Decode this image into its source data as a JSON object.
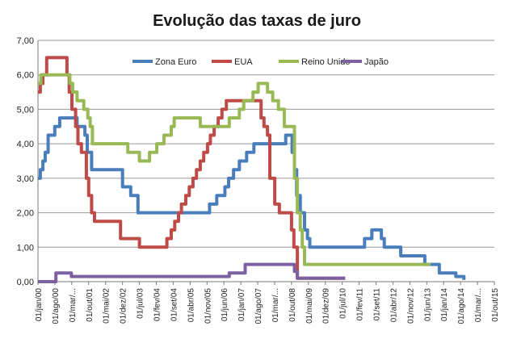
{
  "chart_data": {
    "type": "line",
    "title": "Evolução das taxas de juro",
    "xlabel": "",
    "ylabel": "",
    "ylim": [
      0,
      7
    ],
    "y_ticks": [
      "0,00",
      "1,00",
      "2,00",
      "3,00",
      "4,00",
      "5,00",
      "6,00",
      "7,00"
    ],
    "x_ticks": [
      "01/jan/00",
      "01/ago/00",
      "01/mar/...",
      "01/out/01",
      "01/mai/02",
      "01/dez/02",
      "01/jul/03",
      "01/fev/04",
      "01/set/04",
      "01/abr/05",
      "01/nov/05",
      "01/jun/06",
      "01/jan/07",
      "01/ago/07",
      "01/mar/...",
      "01/out/08",
      "01/mai/09",
      "01/dez/09",
      "01/jul/10",
      "01/fev/11",
      "01/set/11",
      "01/abr/12",
      "01/nov/12",
      "01/jun/13",
      "01/jan/14",
      "01/ago/14",
      "01/mar/...",
      "01/out/15"
    ],
    "grid": true,
    "legend_position": "top",
    "series": [
      {
        "name": "Zona Euro",
        "color": "#4a7ebb",
        "points": [
          [
            2000.0,
            3.0
          ],
          [
            2000.08,
            3.25
          ],
          [
            2000.17,
            3.5
          ],
          [
            2000.25,
            3.75
          ],
          [
            2000.35,
            4.25
          ],
          [
            2000.58,
            4.5
          ],
          [
            2000.75,
            4.75
          ],
          [
            2001.35,
            4.5
          ],
          [
            2001.62,
            4.25
          ],
          [
            2001.7,
            3.75
          ],
          [
            2001.85,
            3.25
          ],
          [
            2002.92,
            2.75
          ],
          [
            2003.2,
            2.5
          ],
          [
            2003.45,
            2.0
          ],
          [
            2005.92,
            2.25
          ],
          [
            2006.17,
            2.5
          ],
          [
            2006.45,
            2.75
          ],
          [
            2006.58,
            3.0
          ],
          [
            2006.75,
            3.25
          ],
          [
            2006.95,
            3.5
          ],
          [
            2007.2,
            3.75
          ],
          [
            2007.45,
            4.0
          ],
          [
            2008.55,
            4.25
          ],
          [
            2008.77,
            3.75
          ],
          [
            2008.85,
            3.25
          ],
          [
            2008.93,
            2.5
          ],
          [
            2009.05,
            2.0
          ],
          [
            2009.2,
            1.5
          ],
          [
            2009.3,
            1.25
          ],
          [
            2009.38,
            1.0
          ],
          [
            2011.27,
            1.25
          ],
          [
            2011.52,
            1.5
          ],
          [
            2011.85,
            1.25
          ],
          [
            2011.95,
            1.0
          ],
          [
            2012.52,
            0.75
          ],
          [
            2013.35,
            0.5
          ],
          [
            2013.85,
            0.25
          ],
          [
            2014.42,
            0.15
          ],
          [
            2014.7,
            0.05
          ]
        ]
      },
      {
        "name": "EUA",
        "color": "#be4b48",
        "points": [
          [
            2000.0,
            5.5
          ],
          [
            2000.08,
            5.75
          ],
          [
            2000.17,
            6.0
          ],
          [
            2000.3,
            6.5
          ],
          [
            2001.0,
            6.0
          ],
          [
            2001.08,
            5.5
          ],
          [
            2001.17,
            5.0
          ],
          [
            2001.3,
            4.5
          ],
          [
            2001.38,
            4.0
          ],
          [
            2001.5,
            3.75
          ],
          [
            2001.67,
            3.0
          ],
          [
            2001.75,
            2.5
          ],
          [
            2001.85,
            2.0
          ],
          [
            2001.95,
            1.75
          ],
          [
            2002.85,
            1.25
          ],
          [
            2003.5,
            1.0
          ],
          [
            2004.45,
            1.25
          ],
          [
            2004.6,
            1.5
          ],
          [
            2004.72,
            1.75
          ],
          [
            2004.85,
            2.0
          ],
          [
            2004.95,
            2.25
          ],
          [
            2005.1,
            2.5
          ],
          [
            2005.22,
            2.75
          ],
          [
            2005.35,
            3.0
          ],
          [
            2005.47,
            3.25
          ],
          [
            2005.6,
            3.5
          ],
          [
            2005.72,
            3.75
          ],
          [
            2005.85,
            4.0
          ],
          [
            2005.95,
            4.25
          ],
          [
            2006.08,
            4.5
          ],
          [
            2006.22,
            4.75
          ],
          [
            2006.35,
            5.0
          ],
          [
            2006.5,
            5.25
          ],
          [
            2007.7,
            4.75
          ],
          [
            2007.8,
            4.5
          ],
          [
            2007.92,
            4.25
          ],
          [
            2008.0,
            3.0
          ],
          [
            2008.17,
            2.25
          ],
          [
            2008.33,
            2.0
          ],
          [
            2008.75,
            1.5
          ],
          [
            2008.83,
            1.0
          ],
          [
            2008.95,
            0.1
          ],
          [
            2010.6,
            0.1
          ]
        ]
      },
      {
        "name": "Reino Unido",
        "color": "#98b954",
        "points": [
          [
            2000.0,
            5.75
          ],
          [
            2000.1,
            6.0
          ],
          [
            2001.1,
            5.75
          ],
          [
            2001.2,
            5.5
          ],
          [
            2001.35,
            5.25
          ],
          [
            2001.58,
            5.0
          ],
          [
            2001.72,
            4.75
          ],
          [
            2001.8,
            4.5
          ],
          [
            2001.88,
            4.0
          ],
          [
            2003.1,
            3.75
          ],
          [
            2003.5,
            3.5
          ],
          [
            2003.85,
            3.75
          ],
          [
            2004.1,
            4.0
          ],
          [
            2004.35,
            4.25
          ],
          [
            2004.6,
            4.5
          ],
          [
            2004.7,
            4.75
          ],
          [
            2005.6,
            4.5
          ],
          [
            2006.6,
            4.75
          ],
          [
            2006.95,
            5.0
          ],
          [
            2007.1,
            5.25
          ],
          [
            2007.42,
            5.5
          ],
          [
            2007.6,
            5.75
          ],
          [
            2007.92,
            5.5
          ],
          [
            2008.1,
            5.25
          ],
          [
            2008.3,
            5.0
          ],
          [
            2008.5,
            4.5
          ],
          [
            2008.8,
            4.5
          ],
          [
            2008.85,
            3.0
          ],
          [
            2008.95,
            2.0
          ],
          [
            2009.05,
            1.5
          ],
          [
            2009.12,
            1.0
          ],
          [
            2009.2,
            0.5
          ],
          [
            2013.55,
            0.5
          ]
        ]
      },
      {
        "name": "Japão",
        "color": "#7d60a0",
        "points": [
          [
            2000.0,
            0.0
          ],
          [
            2000.62,
            0.25
          ],
          [
            2001.15,
            0.15
          ],
          [
            2006.6,
            0.25
          ],
          [
            2007.15,
            0.5
          ],
          [
            2008.85,
            0.3
          ],
          [
            2008.95,
            0.1
          ],
          [
            2010.6,
            0.1
          ]
        ]
      }
    ]
  }
}
